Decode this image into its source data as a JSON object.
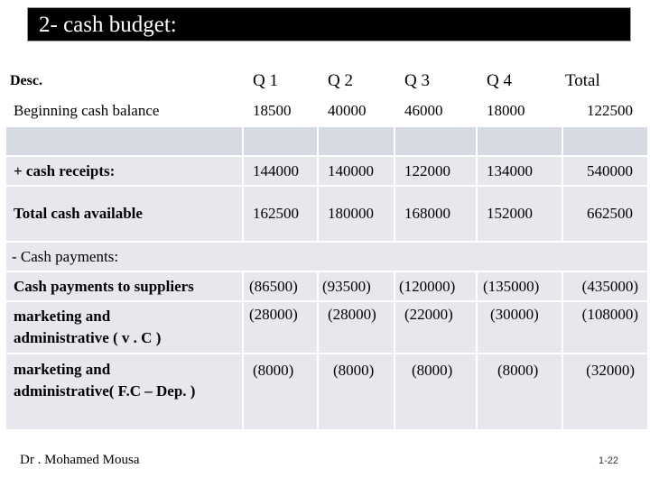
{
  "title": "2- cash budget:",
  "table": {
    "header": {
      "desc": "Desc.",
      "q1": "Q 1",
      "q2": "Q 2",
      "q3": "Q 3",
      "q4": "Q 4",
      "total": "Total"
    },
    "beginning": {
      "label": "Beginning cash balance",
      "q1": "18500",
      "q2": "40000",
      "q3": "46000",
      "q4": "18000",
      "total": "122500"
    },
    "receipts": {
      "label": "+ cash receipts:",
      "q1": "144000",
      "q2": "140000",
      "q3": "122000",
      "q4": "134000",
      "total": "540000"
    },
    "available": {
      "label": "Total cash available",
      "q1": "162500",
      "q2": "180000",
      "q3": "168000",
      "q4": "152000",
      "total": "662500"
    },
    "payments_heading": "- Cash payments:",
    "suppliers": {
      "label": "Cash payments to suppliers",
      "q1": "(86500)",
      "q2": "(93500)",
      "q3": "(120000)",
      "q4": "(135000)",
      "total": "(435000)"
    },
    "mkt_vc": {
      "label_line1": "marketing and",
      "label_line2": "administrative ( v . C )",
      "q1": "(28000)",
      "q2": "(28000)",
      "q3": "(22000)",
      "q4": "(30000)",
      "total": "(108000)"
    },
    "mkt_fc": {
      "label_line1": "marketing and",
      "label_line2": "administrative( F.C – Dep. )",
      "q1": "(8000)",
      "q2": "(8000)",
      "q3": "(8000)",
      "q4": "(8000)",
      "total": "(32000)"
    }
  },
  "footer": {
    "author": "Dr . Mohamed Mousa",
    "page": "1-22"
  }
}
